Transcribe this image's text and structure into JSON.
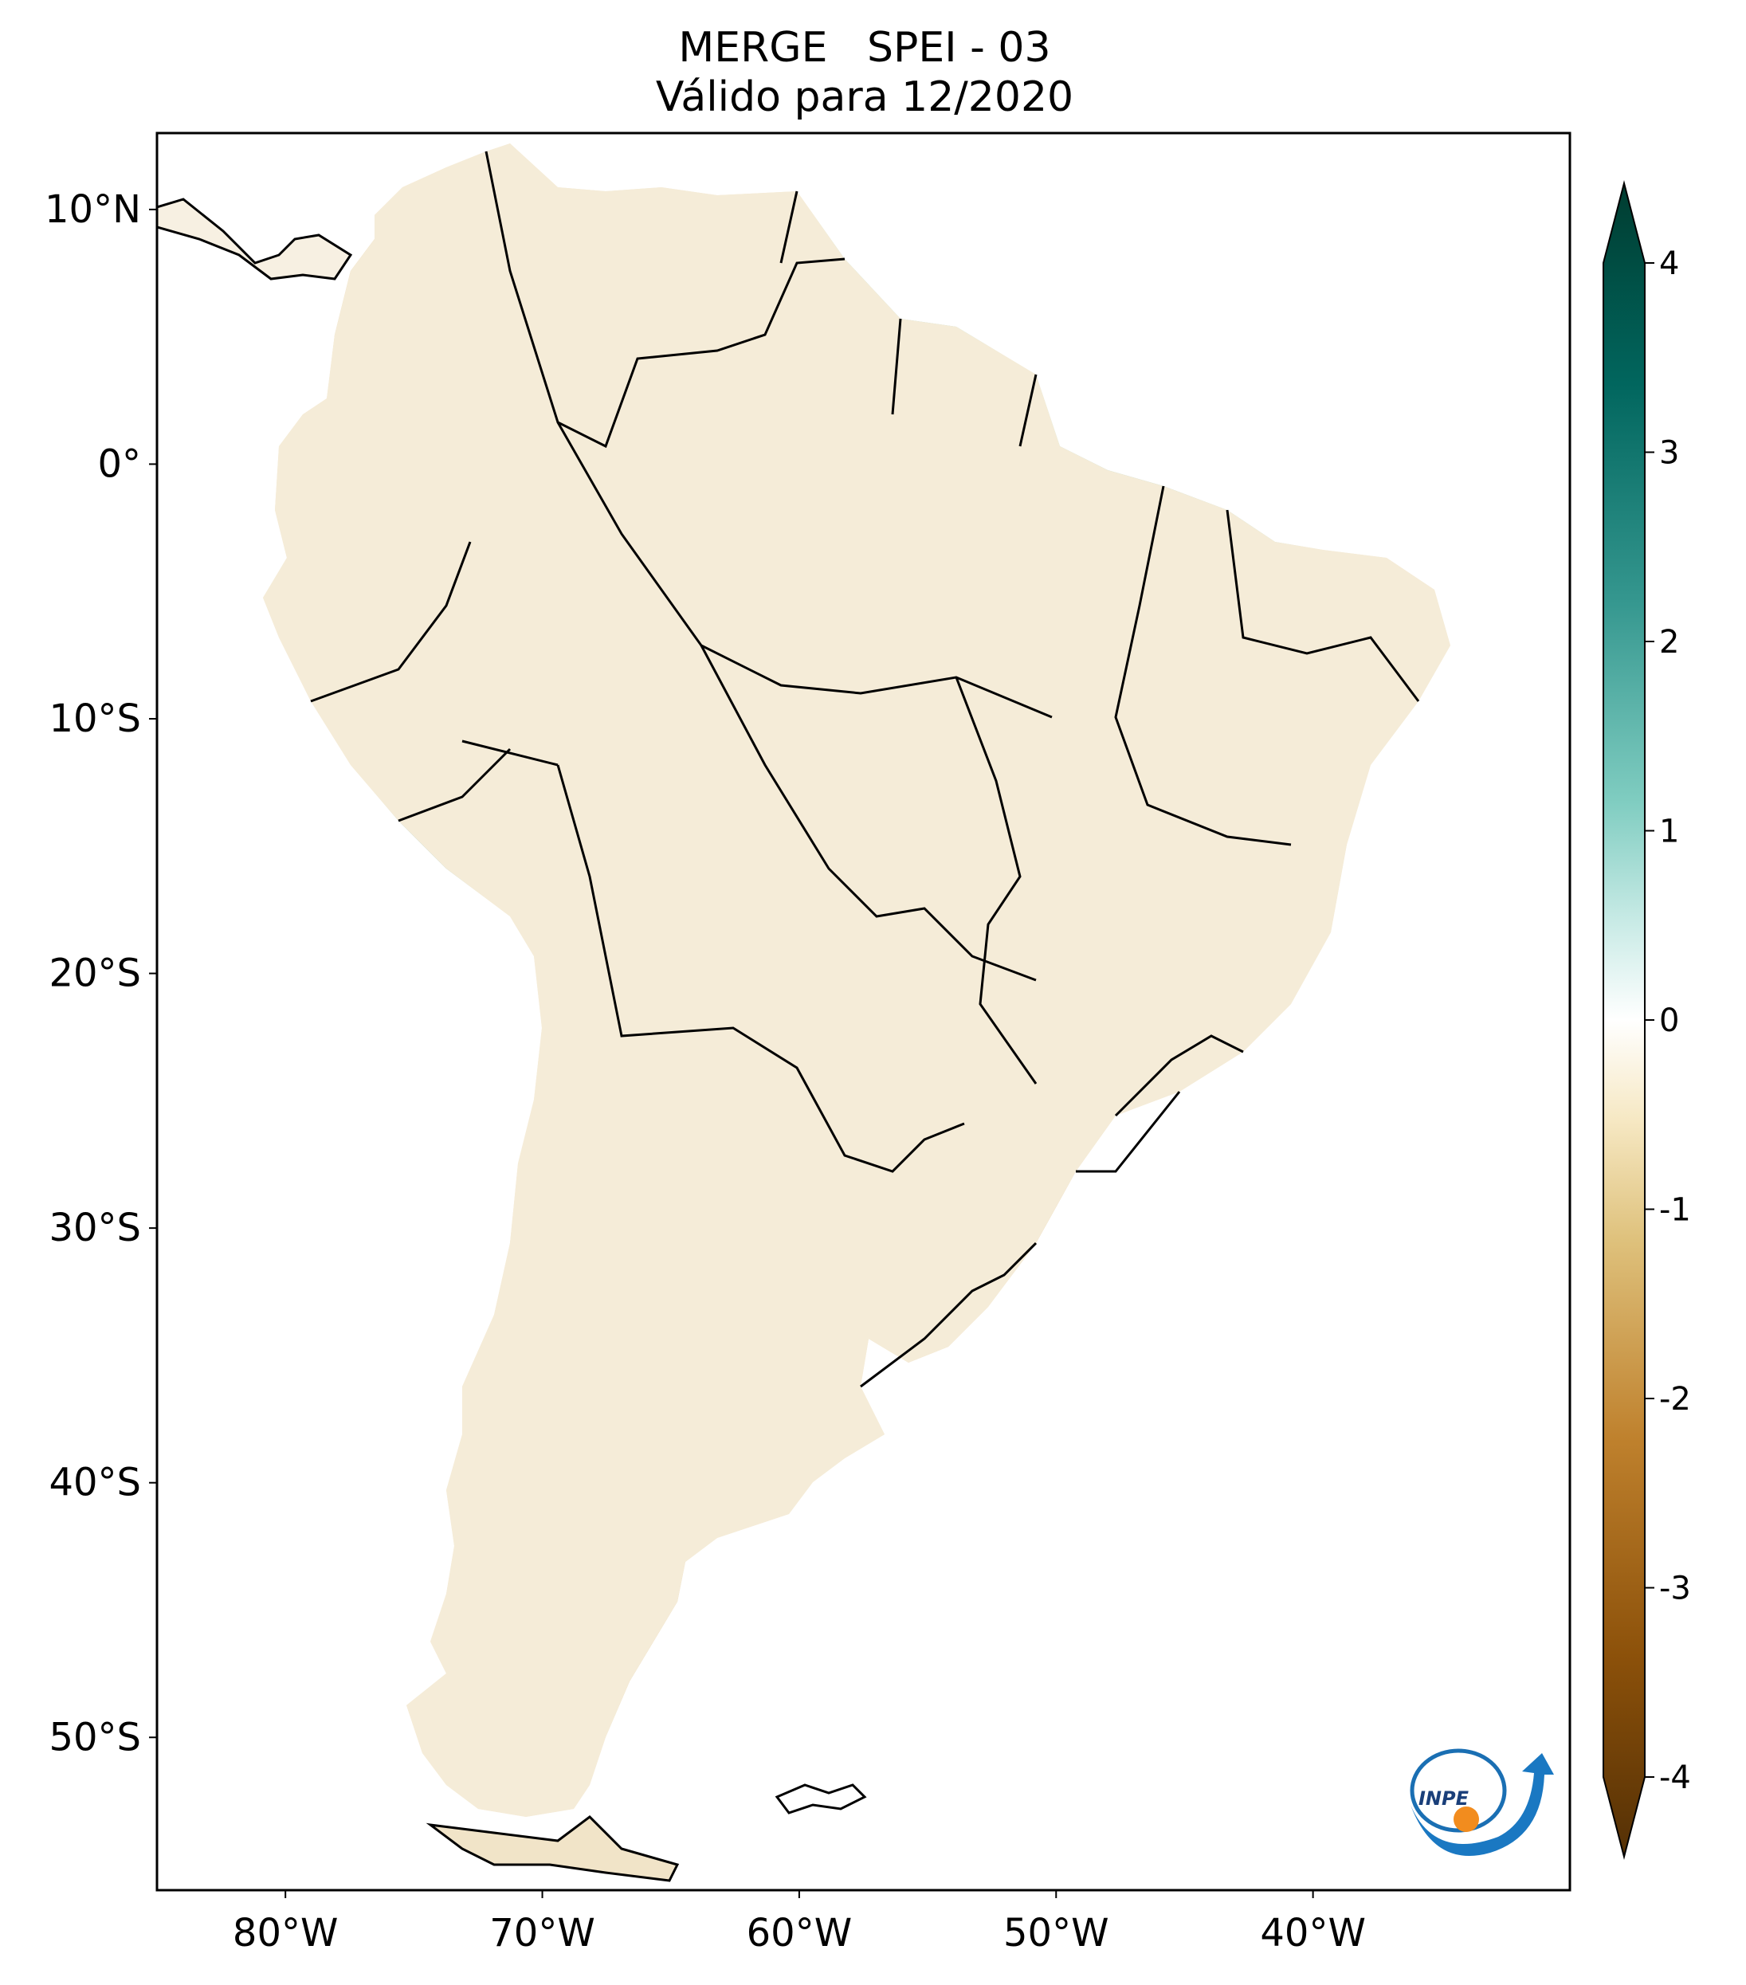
{
  "title": {
    "line1": "MERGE   SPEI - 03",
    "line2": "Válido para 12/2020"
  },
  "map": {
    "extent_lon": [
      -85,
      -30
    ],
    "extent_lat": [
      -56,
      13
    ],
    "lat_ticks": [
      {
        "value": 10,
        "label": "10°N"
      },
      {
        "value": 0,
        "label": "0°"
      },
      {
        "value": -10,
        "label": "10°S"
      },
      {
        "value": -20,
        "label": "20°S"
      },
      {
        "value": -30,
        "label": "30°S"
      },
      {
        "value": -40,
        "label": "40°S"
      },
      {
        "value": -50,
        "label": "50°S"
      }
    ],
    "lon_ticks": [
      {
        "value": -80,
        "label": "80°W"
      },
      {
        "value": -70,
        "label": "70°W"
      },
      {
        "value": -60,
        "label": "60°W"
      },
      {
        "value": -50,
        "label": "50°W"
      },
      {
        "value": -40,
        "label": "40°W"
      }
    ]
  },
  "colorbar": {
    "min": -4,
    "max": 4,
    "ticks": [
      {
        "value": 4,
        "label": "4"
      },
      {
        "value": 3,
        "label": "3"
      },
      {
        "value": 2,
        "label": "2"
      },
      {
        "value": 1,
        "label": "1"
      },
      {
        "value": 0,
        "label": "0"
      },
      {
        "value": -1,
        "label": "-1"
      },
      {
        "value": -2,
        "label": "-2"
      },
      {
        "value": -3,
        "label": "-3"
      },
      {
        "value": -4,
        "label": "-4"
      }
    ],
    "colors": [
      "#543005",
      "#8c510a",
      "#bf812d",
      "#dfc27d",
      "#f6e8c3",
      "#ffffff",
      "#c7eae5",
      "#80cdc1",
      "#35978f",
      "#01665e",
      "#003c30"
    ]
  },
  "regions": {
    "wet_color": "#5fb8a8",
    "wet_strong_color": "#0f7f72",
    "dry_color": "#e6cf9c",
    "dry_strong_color": "#c08a3c"
  },
  "logo": {
    "name": "INPE"
  }
}
